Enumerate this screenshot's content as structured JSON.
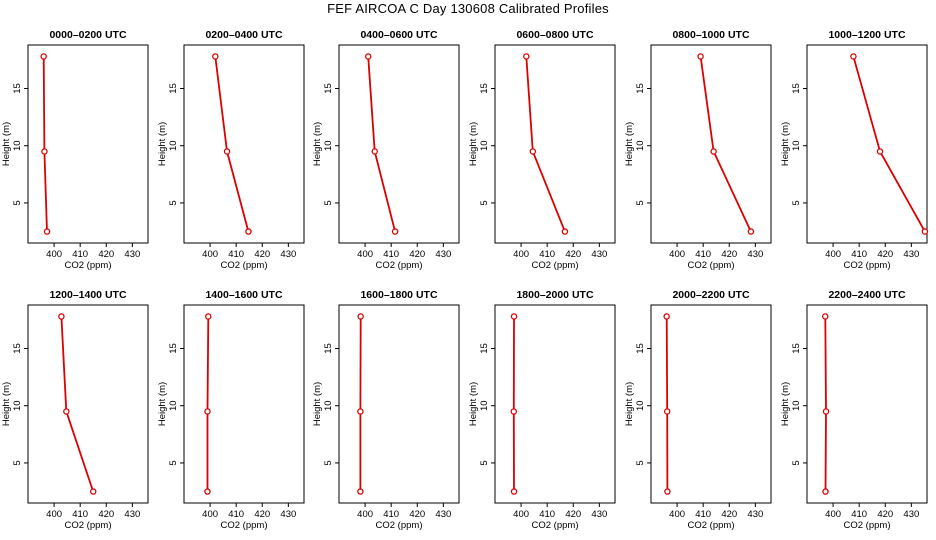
{
  "title": "FEF AIRCOA C  Day 130608  Calibrated Profiles",
  "colors": {
    "series": "#dd0000",
    "axis": "#000000"
  },
  "chart_data": {
    "type": "line",
    "title": "FEF AIRCOA C  Day 130608  Calibrated Profiles",
    "shared": {
      "xlabel": "CO2 (ppm)",
      "ylabel": "Height (m)",
      "xlim": [
        390,
        436
      ],
      "ylim": [
        1.5,
        18.8
      ],
      "xticks": [
        400,
        410,
        420,
        430
      ],
      "yticks": [
        5,
        10,
        15
      ],
      "heights": [
        17.8,
        9.5,
        2.5
      ],
      "grid": false,
      "legend": "none"
    },
    "panels": [
      {
        "title": "0000–0200 UTC",
        "co2": [
          396.0,
          396.3,
          397.3
        ]
      },
      {
        "title": "0200–0400 UTC",
        "co2": [
          402.0,
          406.5,
          414.7
        ]
      },
      {
        "title": "0400–0600 UTC",
        "co2": [
          401.2,
          403.7,
          411.5
        ]
      },
      {
        "title": "0600–0800 UTC",
        "co2": [
          402.0,
          404.5,
          416.8
        ]
      },
      {
        "title": "0800–1000 UTC",
        "co2": [
          409.0,
          414.0,
          428.3
        ]
      },
      {
        "title": "1000–1200 UTC",
        "co2": [
          407.8,
          418.0,
          435.2
        ]
      },
      {
        "title": "1200–1400 UTC",
        "co2": [
          402.8,
          404.7,
          415.0
        ]
      },
      {
        "title": "1400–1600 UTC",
        "co2": [
          399.3,
          399.0,
          399.0
        ]
      },
      {
        "title": "1600–1800 UTC",
        "co2": [
          398.3,
          398.2,
          398.2
        ]
      },
      {
        "title": "1800–2000 UTC",
        "co2": [
          397.3,
          397.2,
          397.3
        ]
      },
      {
        "title": "2000–2200 UTC",
        "co2": [
          396.0,
          396.2,
          396.3
        ]
      },
      {
        "title": "2200–2400 UTC",
        "co2": [
          397.0,
          397.3,
          397.1
        ]
      }
    ]
  }
}
